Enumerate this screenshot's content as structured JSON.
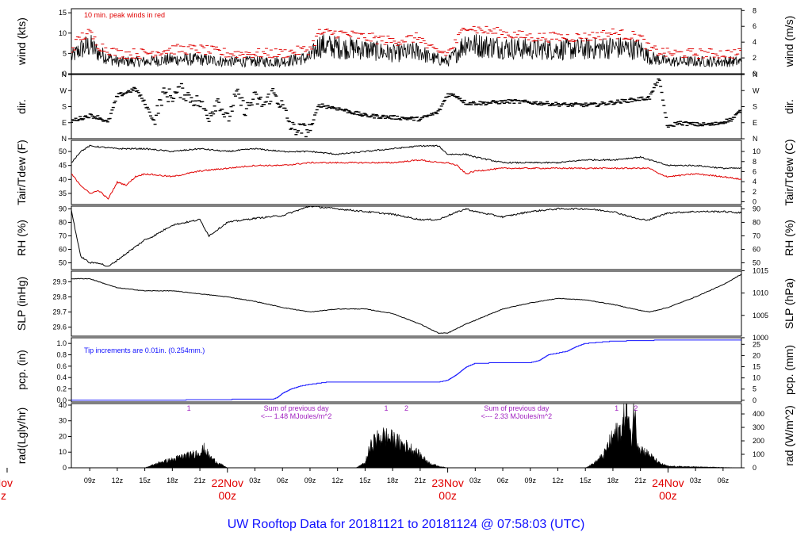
{
  "footer": {
    "title": "UW Rooftop Data for 20181121  to  20181124 @ 07:58:03  (UTC)"
  },
  "colors": {
    "primary": "#000000",
    "peak": "#e00000",
    "dew": "#e00000",
    "precip": "#1010ff",
    "annotation": "#a020c0",
    "day_label": "#e00000",
    "footer": "#1010ff"
  },
  "time_axis": {
    "start_hour": 7,
    "end_hour": 80,
    "ticks": [
      {
        "h": 9,
        "label": "09z"
      },
      {
        "h": 12,
        "label": "12z"
      },
      {
        "h": 15,
        "label": "15z"
      },
      {
        "h": 18,
        "label": "18z"
      },
      {
        "h": 21,
        "label": "21z"
      },
      {
        "h": 27,
        "label": "03z"
      },
      {
        "h": 30,
        "label": "06z"
      },
      {
        "h": 33,
        "label": "09z"
      },
      {
        "h": 36,
        "label": "12z"
      },
      {
        "h": 39,
        "label": "15z"
      },
      {
        "h": 42,
        "label": "18z"
      },
      {
        "h": 45,
        "label": "21z"
      },
      {
        "h": 51,
        "label": "03z"
      },
      {
        "h": 54,
        "label": "06z"
      },
      {
        "h": 57,
        "label": "09z"
      },
      {
        "h": 60,
        "label": "12z"
      },
      {
        "h": 63,
        "label": "15z"
      },
      {
        "h": 66,
        "label": "18z"
      },
      {
        "h": 69,
        "label": "21z"
      },
      {
        "h": 75,
        "label": "03z"
      },
      {
        "h": 78,
        "label": "06z"
      }
    ],
    "day_labels": [
      {
        "h": 0,
        "date": "Nov",
        "time": "z"
      },
      {
        "h": 24,
        "date": "22Nov",
        "time": "00z"
      },
      {
        "h": 48,
        "date": "23Nov",
        "time": "00z"
      },
      {
        "h": 72,
        "date": "24Nov",
        "time": "00z"
      }
    ]
  },
  "chart_data": [
    {
      "id": "wind",
      "type": "line",
      "ylabel_left": "wind (kts)",
      "ylabel_right": "wind (m/s)",
      "ylim": [
        0,
        16
      ],
      "left_ticks": [
        0,
        5,
        10,
        15
      ],
      "right_ticks": [
        0,
        2,
        4,
        6,
        8
      ],
      "right_factor": 0.5144,
      "annotation": "10 min. peak winds in red",
      "series": [
        {
          "role": "speed",
          "x": [
            7,
            8,
            9,
            10,
            12,
            15,
            18,
            21,
            24,
            27,
            30,
            33,
            34,
            36,
            39,
            42,
            45,
            46,
            48,
            49,
            50,
            51,
            54,
            57,
            60,
            63,
            66,
            69,
            70,
            72,
            75,
            78,
            80
          ],
          "y": [
            4,
            6,
            7,
            5,
            3,
            3,
            3.5,
            3.5,
            3,
            3,
            3,
            4,
            7,
            6.5,
            6,
            5,
            5.5,
            4,
            3,
            5,
            8,
            7,
            6.5,
            6,
            6,
            6,
            6.5,
            6,
            4,
            3,
            3,
            3,
            3
          ]
        },
        {
          "role": "peak",
          "x": [
            7,
            8,
            9,
            10,
            12,
            15,
            18,
            21,
            24,
            27,
            30,
            33,
            34,
            36,
            39,
            42,
            45,
            46,
            48,
            49,
            50,
            51,
            54,
            57,
            60,
            63,
            66,
            69,
            70,
            72,
            75,
            78,
            80
          ],
          "y": [
            6,
            9,
            10,
            7,
            5,
            5,
            6,
            6,
            5,
            5,
            5,
            6,
            10,
            10,
            9,
            8,
            9,
            6,
            5,
            8,
            12,
            11,
            10,
            9,
            9,
            9,
            10,
            9,
            6,
            5,
            5,
            5,
            5
          ]
        }
      ]
    },
    {
      "id": "dir",
      "type": "scatter",
      "ylabel_left": "dir.",
      "ylabel_right": "dir.",
      "ylim": [
        0,
        360
      ],
      "tick_values": [
        0,
        90,
        180,
        270,
        360
      ],
      "tick_labels": [
        "N",
        "E",
        "S",
        "W",
        "N"
      ],
      "series": [
        {
          "role": "direction",
          "x": [
            7,
            9,
            10,
            11,
            12,
            13,
            14,
            15,
            16,
            17,
            18,
            19,
            20,
            21,
            22,
            23,
            24,
            25,
            26,
            27,
            28,
            29,
            30,
            31,
            32,
            33,
            34,
            36,
            39,
            42,
            45,
            47,
            48,
            49,
            50,
            52,
            55,
            58,
            61,
            64,
            67,
            70,
            71,
            72,
            73,
            75,
            77,
            79,
            80
          ],
          "y": [
            100,
            130,
            120,
            90,
            240,
            260,
            280,
            200,
            100,
            250,
            240,
            270,
            230,
            200,
            130,
            220,
            100,
            250,
            160,
            230,
            190,
            260,
            180,
            60,
            50,
            50,
            190,
            170,
            130,
            120,
            110,
            150,
            250,
            240,
            200,
            200,
            210,
            200,
            190,
            190,
            210,
            230,
            340,
            60,
            90,
            80,
            80,
            110,
            160
          ]
        }
      ]
    },
    {
      "id": "temp",
      "type": "line",
      "ylabel_left": "Tair/Tdew (F)",
      "ylabel_right": "Tair/Tdew (C)",
      "ylim": [
        31,
        54
      ],
      "left_ticks": [
        35,
        40,
        45,
        50
      ],
      "right_ticks": [
        0,
        2,
        4,
        6,
        8,
        10
      ],
      "right_convert": "celsius",
      "series": [
        {
          "role": "tair",
          "x": [
            7,
            8,
            9,
            12,
            15,
            18,
            21,
            24,
            27,
            30,
            33,
            36,
            39,
            42,
            45,
            47,
            48,
            50,
            51,
            54,
            57,
            60,
            63,
            66,
            69,
            70,
            72,
            75,
            78,
            80
          ],
          "y": [
            46,
            50,
            52,
            51,
            51,
            50,
            51,
            50,
            51,
            50,
            50,
            49,
            50,
            51,
            52,
            52,
            49,
            49,
            48,
            46,
            46,
            46,
            47,
            47,
            48,
            47,
            45,
            45,
            44,
            44
          ]
        },
        {
          "role": "tdew",
          "x": [
            7,
            8,
            9,
            10,
            11,
            12,
            13,
            14,
            15,
            18,
            21,
            24,
            27,
            30,
            33,
            36,
            39,
            42,
            45,
            47,
            48,
            49,
            50,
            51,
            54,
            57,
            60,
            63,
            66,
            69,
            70,
            71,
            72,
            75,
            78,
            80
          ],
          "y": [
            42,
            38,
            35,
            36,
            33,
            39,
            38,
            41,
            42,
            41,
            43,
            44,
            45,
            45,
            46,
            46,
            46,
            46,
            47,
            46,
            46,
            45,
            42,
            43,
            44,
            44,
            44,
            44,
            44,
            44,
            44,
            42,
            41,
            42,
            41,
            40
          ]
        }
      ]
    },
    {
      "id": "rh",
      "type": "line",
      "ylabel_left": "RH (%)",
      "ylabel_right": "RH (%)",
      "ylim": [
        45,
        92
      ],
      "left_ticks": [
        50,
        60,
        70,
        80,
        90
      ],
      "right_ticks": [
        50,
        60,
        70,
        80,
        90
      ],
      "series": [
        {
          "role": "rh",
          "x": [
            7,
            8,
            9,
            10,
            11,
            12,
            14,
            15,
            16,
            18,
            21,
            22,
            24,
            27,
            30,
            33,
            36,
            39,
            42,
            45,
            47,
            48,
            50,
            51,
            54,
            57,
            60,
            63,
            66,
            69,
            70,
            72,
            75,
            78,
            80
          ],
          "y": [
            89,
            55,
            50,
            50,
            47,
            52,
            62,
            67,
            70,
            78,
            82,
            70,
            80,
            83,
            85,
            92,
            90,
            88,
            86,
            82,
            82,
            85,
            90,
            88,
            84,
            88,
            90,
            90,
            88,
            82,
            82,
            87,
            88,
            88,
            87
          ]
        }
      ]
    },
    {
      "id": "slp",
      "type": "line",
      "ylabel_left": "SLP (inHg)",
      "ylabel_right": "SLP (hPa)",
      "ylim": [
        29.54,
        29.97
      ],
      "left_ticks": [
        29.6,
        29.7,
        29.8,
        29.9
      ],
      "right_ticks": [
        1000,
        1005,
        1010,
        1015
      ],
      "right_convert": "hpa",
      "series": [
        {
          "role": "pressure",
          "x": [
            7,
            9,
            10,
            12,
            15,
            18,
            21,
            24,
            27,
            30,
            33,
            36,
            39,
            42,
            45,
            47,
            48,
            50,
            54,
            57,
            60,
            63,
            66,
            69,
            70,
            72,
            75,
            78,
            80
          ],
          "y": [
            29.92,
            29.92,
            29.9,
            29.86,
            29.84,
            29.84,
            29.82,
            29.8,
            29.77,
            29.73,
            29.7,
            29.72,
            29.72,
            29.69,
            29.62,
            29.56,
            29.56,
            29.62,
            29.72,
            29.76,
            29.79,
            29.78,
            29.75,
            29.71,
            29.7,
            29.73,
            29.8,
            29.88,
            29.95
          ]
        }
      ]
    },
    {
      "id": "pcp",
      "type": "line",
      "ylabel_left": "pcp. (in)",
      "ylabel_right": "pcp. (mm)",
      "ylim": [
        -0.03,
        1.1
      ],
      "left_ticks": [
        0.0,
        0.2,
        0.4,
        0.6,
        0.8,
        1.0
      ],
      "left_tick_labels": [
        "0.0",
        "0.2",
        "0.4",
        "0.6",
        "0.8",
        "1.0"
      ],
      "right_ticks": [
        0,
        5,
        10,
        15,
        20,
        25
      ],
      "right_factor": 25.4,
      "annotation": "Tip increments are 0.01in. (0.254mm.)",
      "series": [
        {
          "role": "accumulated",
          "x": [
            7,
            12,
            19,
            20,
            29,
            29.5,
            30,
            31,
            32,
            33,
            35,
            47,
            48,
            49,
            50,
            51,
            54,
            57,
            58,
            59,
            61,
            62,
            63,
            66,
            69,
            72,
            75,
            80
          ],
          "y": [
            0,
            0,
            0,
            0.01,
            0.02,
            0.05,
            0.12,
            0.2,
            0.25,
            0.28,
            0.32,
            0.32,
            0.35,
            0.45,
            0.58,
            0.65,
            0.66,
            0.66,
            0.7,
            0.8,
            0.86,
            0.94,
            1.0,
            1.04,
            1.05,
            1.06,
            1.06,
            1.06
          ]
        }
      ]
    },
    {
      "id": "rad",
      "type": "area",
      "ylabel_left": "rad(Lgly/hr)",
      "ylabel_right": "rad (W/m^2)",
      "ylim": [
        0,
        41
      ],
      "left_ticks": [
        0,
        10,
        20,
        30,
        40
      ],
      "right_ticks": [
        0,
        100,
        200,
        300,
        400
      ],
      "right_factor": 11.63,
      "marker_labels": [
        {
          "h": 19.8,
          "label": "1"
        },
        {
          "h": 41.3,
          "label": "1"
        },
        {
          "h": 43.5,
          "label": "2"
        },
        {
          "h": 66.4,
          "label": "1"
        },
        {
          "h": 68.5,
          "label": "2"
        }
      ],
      "day_notes": [
        {
          "h": 31.5,
          "line1": "Sum of previous day",
          "line2": "<--- 1.48 MJoules/m^2"
        },
        {
          "h": 55.5,
          "line1": "Sum of previous day",
          "line2": "<--- 2.33 MJoules/m^2"
        }
      ],
      "series": [
        {
          "role": "radiation",
          "x": [
            7,
            15,
            16,
            17,
            18,
            19,
            20,
            21,
            21.5,
            22,
            23,
            24,
            38,
            39,
            39.5,
            40,
            41,
            42,
            43,
            44,
            45,
            46,
            47,
            48,
            63,
            64,
            65,
            66,
            67,
            67.5,
            68,
            68.3,
            68.6,
            69,
            70,
            71,
            72,
            80
          ],
          "y": [
            0,
            0,
            2,
            4,
            5,
            7,
            8,
            10,
            12,
            7,
            3,
            0,
            0,
            3,
            12,
            17,
            20,
            18,
            15,
            12,
            8,
            3,
            1,
            0,
            0,
            3,
            8,
            20,
            25,
            40,
            15,
            40,
            18,
            12,
            8,
            3,
            1,
            0
          ]
        }
      ]
    }
  ]
}
